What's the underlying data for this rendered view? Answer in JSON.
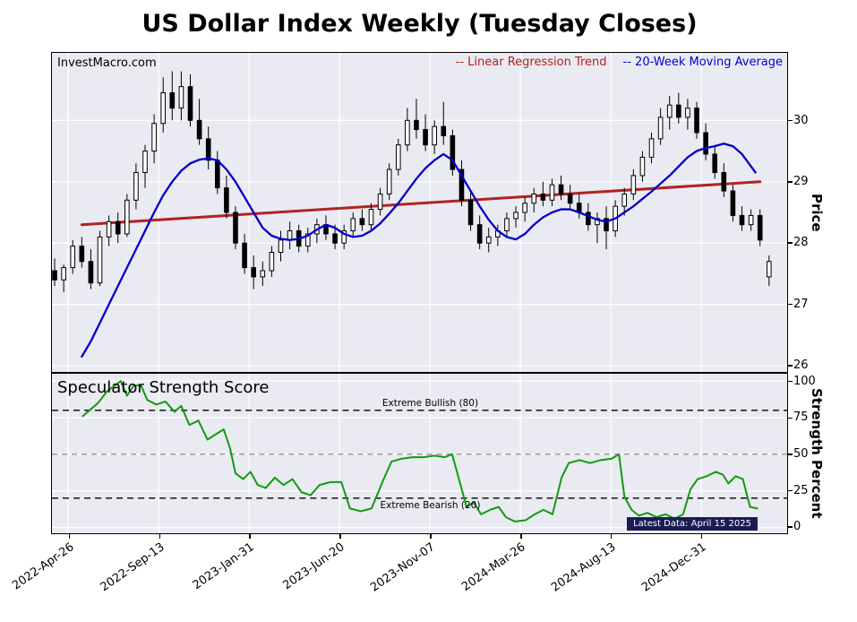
{
  "title": "US Dollar Index Weekly (Tuesday Closes)",
  "watermark": "InvestMacro.com",
  "colors": {
    "panel_bg": "#eaeaf2",
    "grid": "#ffffff",
    "regression": "#b22222",
    "ma": "#0000cc",
    "score": "#119b11",
    "candle_up_fill": "#ffffff",
    "candle_down_fill": "#000000",
    "candle_stroke": "#000000",
    "threshold_black": "#000000",
    "midline_gray": "#7f7f7f",
    "badge_bg": "#1b1b55",
    "badge_text": "#ffffff"
  },
  "xaxis": {
    "tick_labels": [
      "2022-Apr-26",
      "2022-Sep-13",
      "2023-Jan-31",
      "2023-Jun-20",
      "2023-Nov-07",
      "2024-Mar-26",
      "2024-Aug-13",
      "2024-Dec-31"
    ],
    "tick_weeks": [
      3,
      23,
      43,
      63,
      83,
      103,
      123,
      143
    ],
    "xlim": [
      -0.6,
      162
    ]
  },
  "chart_data": [
    {
      "type": "candlestick",
      "title": "US Dollar Index Weekly (Tuesday Closes)",
      "ylabel": "Price",
      "ylim": [
        25.9,
        31.1
      ],
      "yticks": [
        26,
        27,
        28,
        29,
        30
      ],
      "x_unit": "week_index",
      "ohlc": [
        [
          0,
          27.55,
          27.75,
          27.3,
          27.4
        ],
        [
          2,
          27.4,
          27.65,
          27.2,
          27.6
        ],
        [
          4,
          27.6,
          28.05,
          27.5,
          27.95
        ],
        [
          6,
          27.95,
          28.1,
          27.6,
          27.7
        ],
        [
          8,
          27.7,
          27.9,
          27.25,
          27.35
        ],
        [
          10,
          27.35,
          28.2,
          27.3,
          28.1
        ],
        [
          12,
          28.1,
          28.45,
          27.95,
          28.35
        ],
        [
          14,
          28.35,
          28.5,
          28.0,
          28.15
        ],
        [
          16,
          28.15,
          28.8,
          28.1,
          28.7
        ],
        [
          18,
          28.7,
          29.3,
          28.55,
          29.15
        ],
        [
          20,
          29.15,
          29.6,
          28.9,
          29.5
        ],
        [
          22,
          29.5,
          30.1,
          29.3,
          29.95
        ],
        [
          24,
          29.95,
          30.7,
          29.8,
          30.45
        ],
        [
          26,
          30.45,
          30.8,
          30.0,
          30.2
        ],
        [
          28,
          30.2,
          30.8,
          30.0,
          30.55
        ],
        [
          30,
          30.55,
          30.75,
          29.9,
          30.0
        ],
        [
          32,
          30.0,
          30.35,
          29.6,
          29.7
        ],
        [
          34,
          29.7,
          29.9,
          29.2,
          29.35
        ],
        [
          36,
          29.35,
          29.5,
          28.8,
          28.9
        ],
        [
          38,
          28.9,
          29.1,
          28.4,
          28.5
        ],
        [
          40,
          28.5,
          28.6,
          27.9,
          28.0
        ],
        [
          42,
          28.0,
          28.15,
          27.5,
          27.6
        ],
        [
          44,
          27.6,
          27.8,
          27.25,
          27.45
        ],
        [
          46,
          27.45,
          27.7,
          27.3,
          27.55
        ],
        [
          48,
          27.55,
          27.95,
          27.45,
          27.85
        ],
        [
          50,
          27.85,
          28.2,
          27.7,
          28.05
        ],
        [
          52,
          28.05,
          28.35,
          27.9,
          28.2
        ],
        [
          54,
          28.2,
          28.3,
          27.85,
          27.95
        ],
        [
          56,
          27.95,
          28.25,
          27.85,
          28.15
        ],
        [
          58,
          28.15,
          28.4,
          28.0,
          28.3
        ],
        [
          60,
          28.3,
          28.45,
          28.05,
          28.15
        ],
        [
          62,
          28.15,
          28.3,
          27.9,
          28.0
        ],
        [
          64,
          28.0,
          28.3,
          27.9,
          28.2
        ],
        [
          66,
          28.2,
          28.5,
          28.1,
          28.4
        ],
        [
          68,
          28.4,
          28.55,
          28.2,
          28.3
        ],
        [
          70,
          28.3,
          28.65,
          28.2,
          28.55
        ],
        [
          72,
          28.55,
          28.9,
          28.45,
          28.8
        ],
        [
          74,
          28.8,
          29.3,
          28.7,
          29.2
        ],
        [
          76,
          29.2,
          29.7,
          29.1,
          29.6
        ],
        [
          78,
          29.6,
          30.2,
          29.5,
          30.0
        ],
        [
          80,
          30.0,
          30.35,
          29.7,
          29.85
        ],
        [
          82,
          29.85,
          30.1,
          29.5,
          29.6
        ],
        [
          84,
          29.6,
          30.0,
          29.45,
          29.9
        ],
        [
          86,
          29.9,
          30.3,
          29.6,
          29.75
        ],
        [
          88,
          29.75,
          29.85,
          29.1,
          29.2
        ],
        [
          90,
          29.2,
          29.35,
          28.6,
          28.7
        ],
        [
          92,
          28.7,
          28.85,
          28.2,
          28.3
        ],
        [
          94,
          28.3,
          28.45,
          27.9,
          28.0
        ],
        [
          96,
          28.0,
          28.25,
          27.85,
          28.1
        ],
        [
          98,
          28.1,
          28.3,
          27.95,
          28.2
        ],
        [
          100,
          28.2,
          28.5,
          28.1,
          28.4
        ],
        [
          102,
          28.4,
          28.6,
          28.25,
          28.5
        ],
        [
          104,
          28.5,
          28.75,
          28.35,
          28.65
        ],
        [
          106,
          28.65,
          28.9,
          28.5,
          28.8
        ],
        [
          108,
          28.8,
          29.0,
          28.6,
          28.7
        ],
        [
          110,
          28.7,
          29.05,
          28.6,
          28.95
        ],
        [
          112,
          28.95,
          29.1,
          28.7,
          28.8
        ],
        [
          114,
          28.8,
          28.95,
          28.55,
          28.65
        ],
        [
          116,
          28.65,
          28.8,
          28.4,
          28.5
        ],
        [
          118,
          28.5,
          28.65,
          28.2,
          28.3
        ],
        [
          120,
          28.3,
          28.5,
          28.0,
          28.4
        ],
        [
          122,
          28.4,
          28.6,
          27.9,
          28.2
        ],
        [
          124,
          28.2,
          28.7,
          28.1,
          28.6
        ],
        [
          126,
          28.6,
          28.9,
          28.45,
          28.8
        ],
        [
          128,
          28.8,
          29.2,
          28.7,
          29.1
        ],
        [
          130,
          29.1,
          29.5,
          29.0,
          29.4
        ],
        [
          132,
          29.4,
          29.8,
          29.3,
          29.7
        ],
        [
          134,
          29.7,
          30.2,
          29.6,
          30.05
        ],
        [
          136,
          30.05,
          30.4,
          29.85,
          30.25
        ],
        [
          138,
          30.25,
          30.45,
          29.95,
          30.05
        ],
        [
          140,
          30.05,
          30.35,
          29.85,
          30.2
        ],
        [
          142,
          30.2,
          30.3,
          29.7,
          29.8
        ],
        [
          144,
          29.8,
          29.95,
          29.35,
          29.45
        ],
        [
          146,
          29.45,
          29.6,
          29.05,
          29.15
        ],
        [
          148,
          29.15,
          29.3,
          28.75,
          28.85
        ],
        [
          150,
          28.85,
          28.95,
          28.35,
          28.45
        ],
        [
          152,
          28.45,
          28.6,
          28.2,
          28.3
        ],
        [
          154,
          28.3,
          28.55,
          28.2,
          28.45
        ],
        [
          156,
          28.45,
          28.55,
          27.95,
          28.05
        ],
        [
          158,
          27.45,
          27.8,
          27.3,
          27.7
        ]
      ],
      "overlays": {
        "regression_trend": {
          "label": "-- Linear Regression Trend",
          "x": [
            6,
            156
          ],
          "y": [
            28.3,
            29.0
          ]
        },
        "ma20": {
          "label": "-- 20-Week Moving Average",
          "points": [
            [
              6,
              26.15
            ],
            [
              8,
              26.4
            ],
            [
              10,
              26.7
            ],
            [
              12,
              27.0
            ],
            [
              14,
              27.3
            ],
            [
              16,
              27.6
            ],
            [
              18,
              27.9
            ],
            [
              20,
              28.2
            ],
            [
              22,
              28.5
            ],
            [
              24,
              28.78
            ],
            [
              26,
              29.0
            ],
            [
              28,
              29.18
            ],
            [
              30,
              29.3
            ],
            [
              32,
              29.36
            ],
            [
              34,
              29.38
            ],
            [
              36,
              29.35
            ],
            [
              38,
              29.2
            ],
            [
              40,
              29.0
            ],
            [
              42,
              28.75
            ],
            [
              44,
              28.5
            ],
            [
              46,
              28.25
            ],
            [
              48,
              28.12
            ],
            [
              50,
              28.07
            ],
            [
              52,
              28.05
            ],
            [
              54,
              28.07
            ],
            [
              56,
              28.12
            ],
            [
              58,
              28.22
            ],
            [
              60,
              28.3
            ],
            [
              62,
              28.25
            ],
            [
              64,
              28.15
            ],
            [
              66,
              28.1
            ],
            [
              68,
              28.12
            ],
            [
              70,
              28.2
            ],
            [
              72,
              28.32
            ],
            [
              74,
              28.48
            ],
            [
              76,
              28.65
            ],
            [
              78,
              28.85
            ],
            [
              80,
              29.05
            ],
            [
              82,
              29.22
            ],
            [
              84,
              29.35
            ],
            [
              86,
              29.45
            ],
            [
              88,
              29.35
            ],
            [
              90,
              29.1
            ],
            [
              92,
              28.85
            ],
            [
              94,
              28.6
            ],
            [
              96,
              28.38
            ],
            [
              98,
              28.2
            ],
            [
              100,
              28.1
            ],
            [
              102,
              28.06
            ],
            [
              104,
              28.15
            ],
            [
              106,
              28.3
            ],
            [
              108,
              28.42
            ],
            [
              110,
              28.5
            ],
            [
              112,
              28.55
            ],
            [
              114,
              28.55
            ],
            [
              116,
              28.5
            ],
            [
              118,
              28.44
            ],
            [
              120,
              28.38
            ],
            [
              122,
              28.35
            ],
            [
              124,
              28.4
            ],
            [
              126,
              28.5
            ],
            [
              128,
              28.6
            ],
            [
              130,
              28.72
            ],
            [
              132,
              28.84
            ],
            [
              134,
              28.97
            ],
            [
              136,
              29.1
            ],
            [
              138,
              29.25
            ],
            [
              140,
              29.4
            ],
            [
              142,
              29.5
            ],
            [
              144,
              29.55
            ],
            [
              146,
              29.58
            ],
            [
              148,
              29.62
            ],
            [
              150,
              29.58
            ],
            [
              152,
              29.45
            ],
            [
              154,
              29.25
            ],
            [
              155,
              29.15
            ]
          ]
        }
      }
    },
    {
      "type": "line",
      "title": "Speculator Strength Score",
      "ylabel": "Strength Percent",
      "ylim": [
        -4,
        105
      ],
      "yticks": [
        0,
        25,
        50,
        75,
        100
      ],
      "thresholds": {
        "extreme_bullish": {
          "level": 80,
          "label": "Extreme Bullish (80)"
        },
        "extreme_bearish": {
          "level": 20,
          "label": "Extreme Bearish (20)"
        },
        "midline": {
          "level": 50
        }
      },
      "footnote": "Latest Data: April 15 2025",
      "points": [
        [
          6.2,
          76
        ],
        [
          9.6,
          85
        ],
        [
          11.6,
          93
        ],
        [
          14.6,
          100
        ],
        [
          16,
          90
        ],
        [
          17.5,
          97
        ],
        [
          19.1,
          97
        ],
        [
          20.5,
          87
        ],
        [
          22.5,
          84
        ],
        [
          24.5,
          86
        ],
        [
          26.5,
          79
        ],
        [
          28,
          83
        ],
        [
          29.8,
          70
        ],
        [
          31.8,
          73
        ],
        [
          33.8,
          60
        ],
        [
          35.8,
          64
        ],
        [
          37.4,
          67
        ],
        [
          38.8,
          54
        ],
        [
          40,
          37
        ],
        [
          41.7,
          33
        ],
        [
          43.3,
          38
        ],
        [
          44.9,
          29
        ],
        [
          46.7,
          27
        ],
        [
          48.7,
          34
        ],
        [
          50.6,
          29
        ],
        [
          52.6,
          33
        ],
        [
          54.6,
          24
        ],
        [
          56.6,
          22
        ],
        [
          58.6,
          29
        ],
        [
          61,
          31
        ],
        [
          63.4,
          31
        ],
        [
          65.3,
          13
        ],
        [
          67.7,
          11
        ],
        [
          70.1,
          13
        ],
        [
          72.5,
          31
        ],
        [
          74.5,
          45
        ],
        [
          76.8,
          47
        ],
        [
          79.2,
          48
        ],
        [
          81.6,
          48
        ],
        [
          84,
          49
        ],
        [
          86.3,
          48
        ],
        [
          87.9,
          50
        ],
        [
          89.5,
          32
        ],
        [
          91.1,
          14
        ],
        [
          92.7,
          17
        ],
        [
          94.3,
          9
        ],
        [
          96.3,
          12
        ],
        [
          98.2,
          14
        ],
        [
          99.8,
          7
        ],
        [
          101.8,
          4
        ],
        [
          104.2,
          5
        ],
        [
          106.2,
          9
        ],
        [
          108.1,
          12
        ],
        [
          110.1,
          9
        ],
        [
          112.1,
          34
        ],
        [
          113.7,
          44
        ],
        [
          116.1,
          46
        ],
        [
          118.4,
          44
        ],
        [
          120.8,
          46
        ],
        [
          123.2,
          47
        ],
        [
          124.8,
          50
        ],
        [
          126,
          21
        ],
        [
          127.6,
          12
        ],
        [
          129.2,
          8
        ],
        [
          131.1,
          10
        ],
        [
          133.1,
          7
        ],
        [
          135.1,
          9
        ],
        [
          137.1,
          6
        ],
        [
          139,
          9
        ],
        [
          140.6,
          26
        ],
        [
          142.2,
          33
        ],
        [
          144.2,
          35
        ],
        [
          146.2,
          38
        ],
        [
          147.8,
          36
        ],
        [
          149,
          30
        ],
        [
          150.6,
          35
        ],
        [
          152.2,
          33
        ],
        [
          153.8,
          14
        ],
        [
          155.4,
          13
        ]
      ]
    }
  ]
}
